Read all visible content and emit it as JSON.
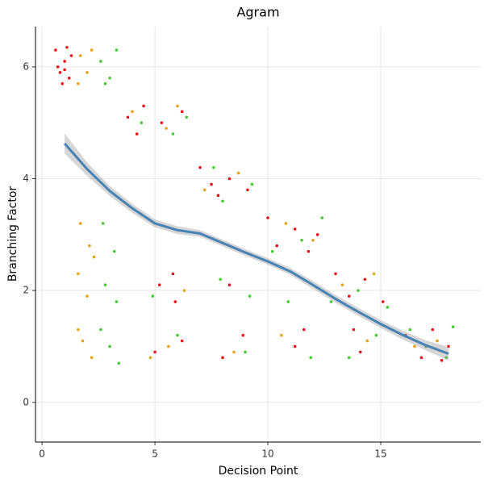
{
  "chart_data": {
    "type": "scatter",
    "title": "Agram",
    "x_label": "Decision Point",
    "y_label": "Branching Factor",
    "xlim": [
      -0.29,
      19.43
    ],
    "ylim": [
      -0.71,
      6.72
    ],
    "xticks": [
      0,
      5,
      10,
      15
    ],
    "yticks": [
      0,
      2,
      4,
      6
    ],
    "grid": true,
    "series": [
      {
        "color": "#e8141a",
        "x": [
          0.6,
          0.8,
          1.0,
          1.2,
          0.7,
          1.1,
          0.9,
          1.3,
          1.0,
          3.8,
          4.2,
          4.5,
          5.3,
          6.2,
          7.0,
          7.5,
          8.3,
          9.1,
          7.8,
          10.0,
          10.4,
          11.2,
          11.8,
          12.2,
          13.0,
          13.6,
          14.3,
          15.1,
          16.1,
          16.8,
          17.3,
          18.0,
          17.7,
          5.2,
          5.9,
          6.2,
          5.0,
          8.3,
          8.9,
          8.0,
          11.2,
          11.6,
          14.1,
          13.8,
          5.8
        ],
        "values": [
          6.3,
          5.9,
          6.1,
          5.8,
          6.0,
          6.35,
          5.7,
          6.2,
          5.95,
          5.1,
          4.8,
          5.3,
          5.0,
          5.2,
          4.2,
          3.9,
          4.0,
          3.8,
          3.7,
          3.3,
          2.8,
          3.1,
          2.7,
          3.0,
          2.3,
          1.9,
          2.2,
          1.8,
          1.2,
          0.8,
          1.3,
          1.0,
          0.75,
          2.1,
          1.8,
          1.1,
          0.9,
          2.1,
          1.2,
          0.8,
          1.0,
          1.3,
          0.9,
          1.3,
          2.3
        ]
      },
      {
        "color": "#e6a21c",
        "x": [
          1.7,
          2.0,
          1.6,
          2.2,
          4.0,
          5.5,
          6.0,
          7.2,
          8.7,
          10.8,
          12.0,
          13.3,
          14.7,
          16.5,
          17.5,
          1.7,
          2.1,
          1.6,
          2.0,
          1.8,
          2.2,
          1.6,
          4.8,
          5.6,
          6.3,
          8.5,
          10.6,
          14.4,
          2.3
        ],
        "values": [
          6.2,
          5.9,
          5.7,
          6.3,
          5.2,
          4.9,
          5.3,
          3.8,
          4.1,
          3.2,
          2.9,
          2.1,
          2.3,
          1.0,
          1.1,
          3.2,
          2.8,
          2.3,
          1.9,
          1.1,
          0.8,
          1.3,
          0.8,
          1.0,
          2.0,
          0.9,
          1.2,
          1.1,
          2.6
        ]
      },
      {
        "color": "#44cc33",
        "x": [
          2.6,
          3.0,
          3.3,
          2.8,
          4.4,
          5.8,
          6.4,
          7.6,
          9.3,
          8.0,
          10.2,
          11.5,
          12.4,
          12.8,
          14.0,
          15.3,
          16.3,
          17.0,
          18.2,
          17.9,
          2.7,
          3.2,
          2.8,
          3.3,
          2.6,
          3.0,
          3.4,
          4.9,
          6.0,
          7.9,
          9.2,
          9.0,
          10.9,
          11.9,
          13.6,
          14.8
        ],
        "values": [
          6.1,
          5.8,
          6.3,
          5.7,
          5.0,
          4.8,
          5.1,
          4.2,
          3.9,
          3.6,
          2.7,
          2.9,
          3.3,
          1.8,
          2.0,
          1.7,
          1.3,
          1.0,
          1.35,
          0.8,
          3.2,
          2.7,
          2.1,
          1.8,
          1.3,
          1.0,
          0.7,
          1.9,
          1.2,
          2.2,
          1.9,
          0.9,
          1.8,
          0.8,
          0.8,
          1.2
        ]
      }
    ],
    "smooth": {
      "color": "#4682b4",
      "x": [
        1,
        2,
        3,
        4,
        5,
        6,
        7,
        8,
        9,
        10,
        11,
        12,
        13,
        14,
        15,
        16,
        17,
        18
      ],
      "values": [
        4.63,
        4.17,
        3.78,
        3.47,
        3.2,
        3.08,
        3.02,
        2.85,
        2.68,
        2.52,
        2.34,
        2.1,
        1.85,
        1.62,
        1.4,
        1.2,
        1.02,
        0.87
      ],
      "lower": [
        4.45,
        4.05,
        3.69,
        3.39,
        3.13,
        3.01,
        2.96,
        2.79,
        2.62,
        2.46,
        2.28,
        2.03,
        1.78,
        1.55,
        1.33,
        1.12,
        0.93,
        0.75
      ],
      "upper": [
        4.81,
        4.29,
        3.87,
        3.55,
        3.27,
        3.15,
        3.08,
        2.91,
        2.74,
        2.58,
        2.4,
        2.17,
        1.92,
        1.69,
        1.47,
        1.28,
        1.11,
        0.99
      ]
    }
  }
}
